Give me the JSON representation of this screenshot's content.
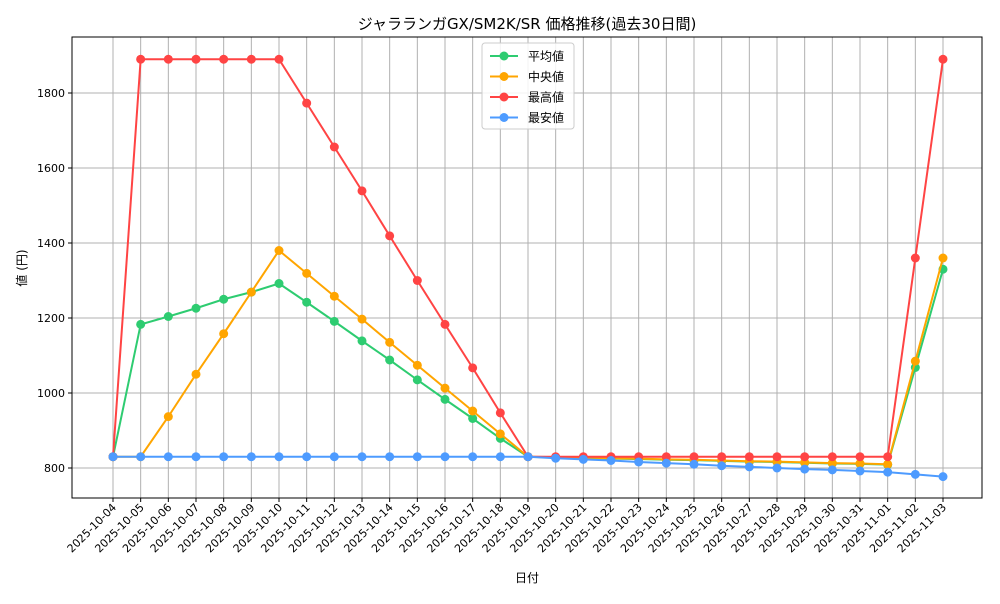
{
  "chart_data": {
    "type": "line",
    "title": "ジャラランガGX/SM2K/SR 価格推移(過去30日間)",
    "xlabel": "日付",
    "ylabel": "値 (円)",
    "ylim": [
      720,
      1945
    ],
    "yticks": [
      800,
      1000,
      1200,
      1400,
      1600,
      1800
    ],
    "grid": true,
    "legend_position": "top-center",
    "x": [
      "2025-10-04",
      "2025-10-05",
      "2025-10-06",
      "2025-10-07",
      "2025-10-08",
      "2025-10-09",
      "2025-10-10",
      "2025-10-11",
      "2025-10-12",
      "2025-10-13",
      "2025-10-14",
      "2025-10-15",
      "2025-10-16",
      "2025-10-17",
      "2025-10-18",
      "2025-10-19",
      "2025-10-20",
      "2025-10-21",
      "2025-10-22",
      "2025-10-23",
      "2025-10-24",
      "2025-10-25",
      "2025-10-26",
      "2025-10-27",
      "2025-10-28",
      "2025-10-29",
      "2025-10-30",
      "2025-10-31",
      "2025-11-01",
      "2025-11-02",
      "2025-11-03"
    ],
    "series": [
      {
        "name": "平均値",
        "color": "#2ecc71",
        "values": [
          830,
          1183,
          1204,
          1226,
          1250,
          1269,
          1292,
          1242,
          1191,
          1139,
          1088,
          1035,
          983,
          932,
          879,
          830,
          828,
          827,
          825,
          824,
          822,
          821,
          819,
          817,
          816,
          814,
          812,
          811,
          809,
          1068,
          1330
        ]
      },
      {
        "name": "中央値",
        "color": "#ffa500",
        "values": [
          830,
          830,
          937,
          1050,
          1158,
          1269,
          1380,
          1319,
          1258,
          1197,
          1135,
          1074,
          1013,
          952,
          891,
          830,
          829,
          828,
          826,
          825,
          823,
          822,
          820,
          818,
          817,
          815,
          813,
          812,
          810,
          1085,
          1360
        ]
      },
      {
        "name": "最高値",
        "color": "#ff4444",
        "values": [
          830,
          1890,
          1890,
          1890,
          1890,
          1890,
          1890,
          1773,
          1656,
          1539,
          1419,
          1300,
          1183,
          1067,
          947,
          830,
          830,
          830,
          830,
          830,
          830,
          830,
          830,
          830,
          830,
          830,
          830,
          830,
          830,
          1360,
          1890
        ]
      },
      {
        "name": "最安値",
        "color": "#4d9bff",
        "values": [
          830,
          830,
          830,
          830,
          830,
          830,
          830,
          830,
          830,
          830,
          830,
          830,
          830,
          830,
          830,
          830,
          826,
          823,
          820,
          816,
          813,
          810,
          806,
          803,
          800,
          797,
          795,
          792,
          789,
          783,
          777
        ]
      }
    ]
  }
}
